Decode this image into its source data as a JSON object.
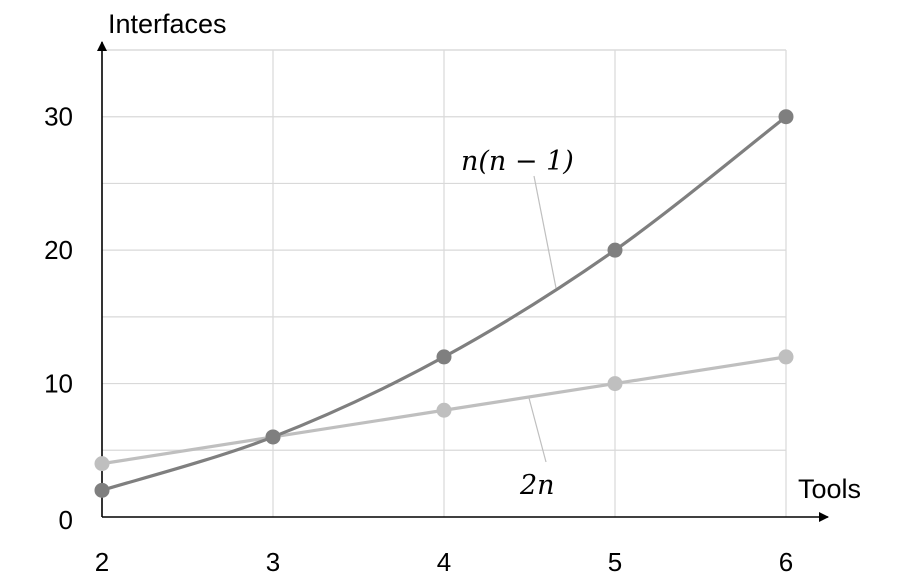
{
  "chart_data": {
    "type": "line",
    "xlabel": "Tools",
    "ylabel": "Interfaces",
    "x": [
      2,
      3,
      4,
      5,
      6
    ],
    "x_ticks": [
      "2",
      "3",
      "4",
      "5",
      "6"
    ],
    "y_ticks": [
      "0",
      "10",
      "20",
      "30"
    ],
    "xlim": [
      2,
      6
    ],
    "ylim": [
      0,
      35
    ],
    "grid": true,
    "series": [
      {
        "name": "n(n − 1)",
        "values": [
          2,
          6,
          12,
          20,
          30
        ],
        "color": "#7f7f7f"
      },
      {
        "name": "2n",
        "values": [
          4,
          6,
          8,
          10,
          12
        ],
        "color": "#bfbfbf"
      }
    ]
  }
}
